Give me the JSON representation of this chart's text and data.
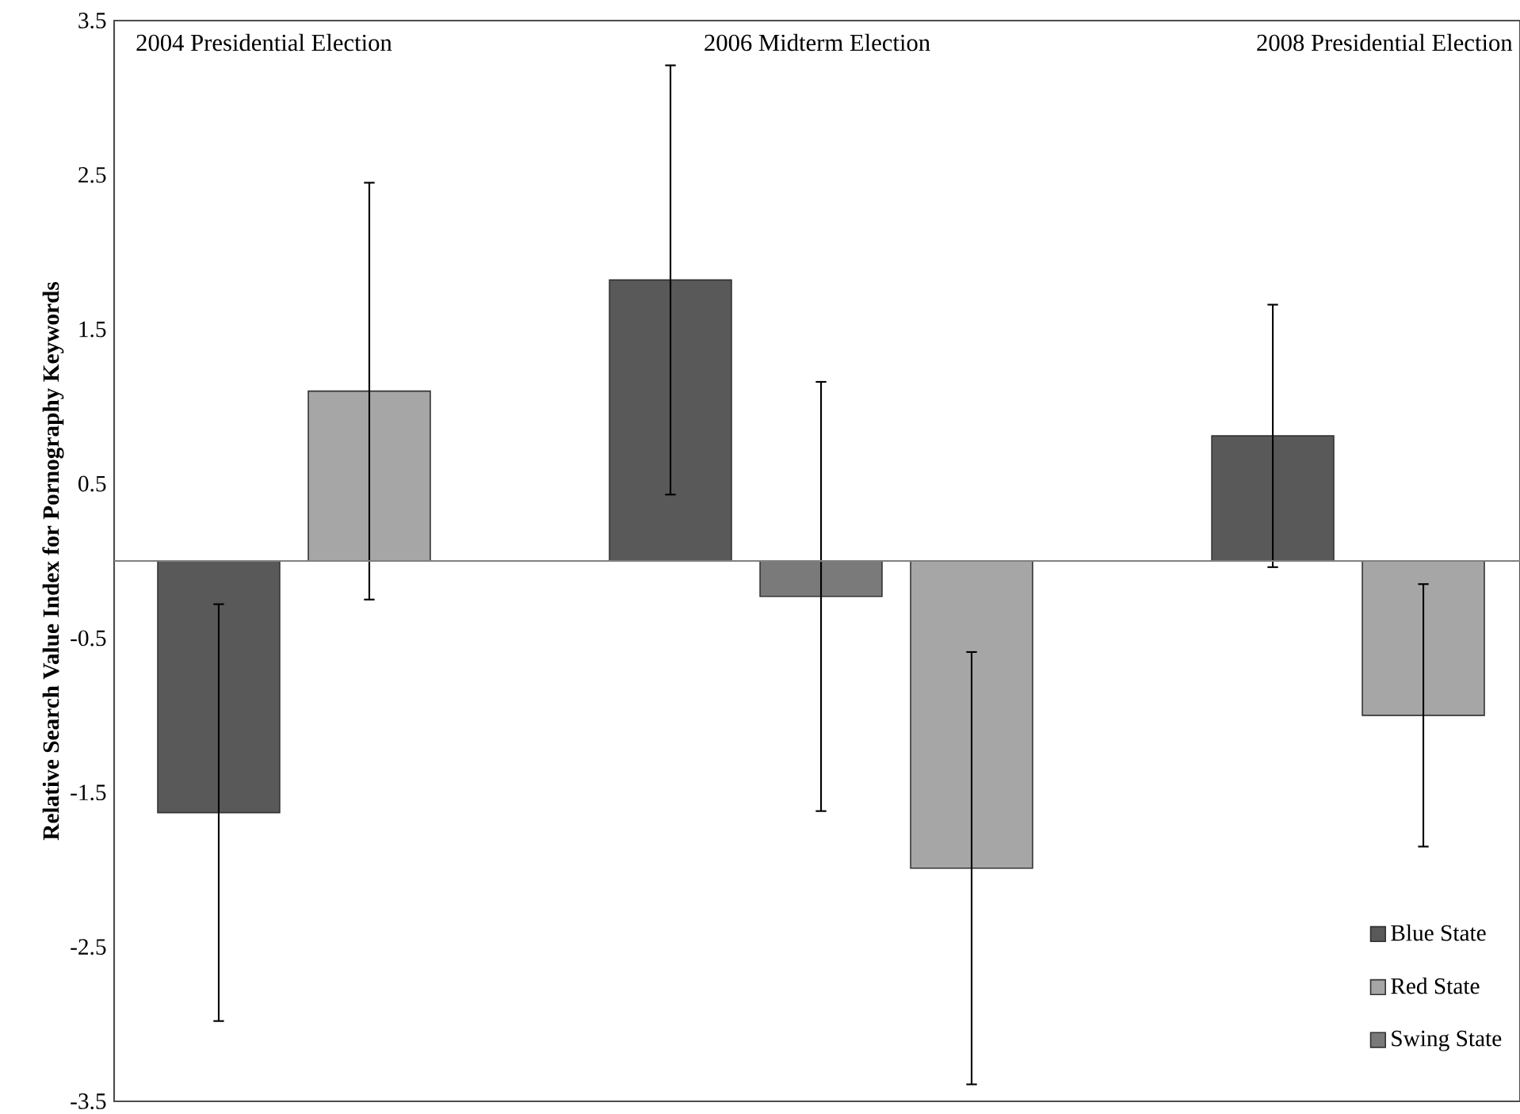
{
  "chart_data": {
    "type": "bar",
    "ylabel": "Relative Search Value Index for Pornography Keywords",
    "annotations": [
      "2004 Presidential Election",
      "2006 Midterm Election",
      "2008 Presidential Election"
    ],
    "categories": [
      null,
      null,
      null,
      null,
      null,
      null,
      null,
      null,
      null
    ],
    "series": [
      {
        "name": "Blue State",
        "color": "#595959",
        "values": [
          -1.63,
          null,
          null,
          1.82,
          null,
          null,
          null,
          0.81,
          null
        ],
        "errors": [
          1.35,
          null,
          null,
          1.39,
          null,
          null,
          null,
          0.85,
          null
        ]
      },
      {
        "name": "Red State",
        "color": "#a6a6a6",
        "values": [
          null,
          1.1,
          null,
          null,
          null,
          -1.99,
          null,
          null,
          -1.0
        ],
        "errors": [
          null,
          1.35,
          null,
          null,
          null,
          1.4,
          null,
          null,
          0.85
        ]
      },
      {
        "name": "Swing State",
        "color": "#7a7a7a",
        "values": [
          null,
          null,
          null,
          null,
          -0.23,
          null,
          null,
          null,
          null
        ],
        "errors": [
          null,
          null,
          null,
          null,
          1.39,
          null,
          null,
          null,
          null
        ]
      }
    ],
    "ylim": [
      -3.5,
      3.5
    ],
    "yticks": [
      -3.5,
      -2.5,
      -1.5,
      -0.5,
      0.5,
      1.5,
      2.5,
      3.5
    ],
    "ref_lines": [
      {
        "axis": "y",
        "value": 0,
        "color": "#808080"
      }
    ],
    "legend": "bottom right",
    "grid": false
  }
}
